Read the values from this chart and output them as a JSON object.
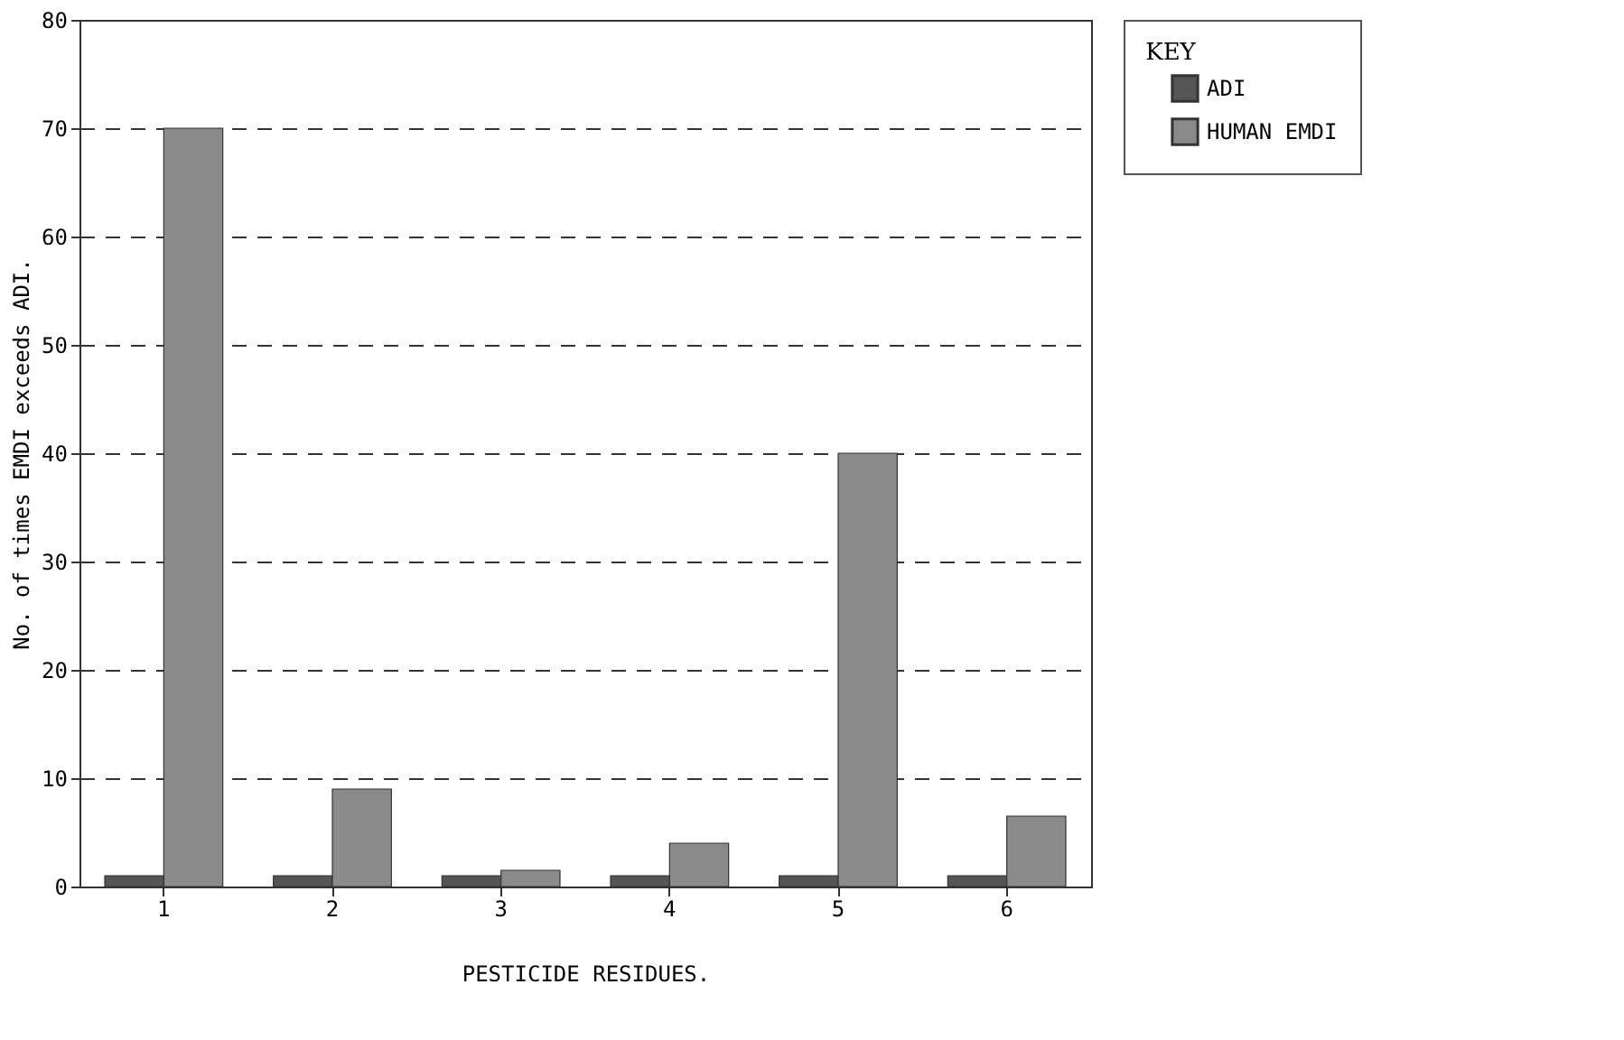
{
  "chart_data": {
    "type": "bar",
    "xlabel": "PESTICIDE RESIDUES.",
    "ylabel": "No. of times EMDI exceeds ADI.",
    "legend_title": "KEY",
    "categories": [
      "1",
      "2",
      "3",
      "4",
      "5",
      "6"
    ],
    "series": [
      {
        "name": "ADI",
        "color": "#555555",
        "values": [
          1,
          1,
          1,
          1,
          1,
          1
        ]
      },
      {
        "name": "HUMAN EMDI",
        "color": "#8a8a8a",
        "values": [
          70,
          9,
          1.5,
          4,
          40,
          6.5
        ]
      }
    ],
    "ylim": [
      0,
      80
    ],
    "yticks": [
      0,
      10,
      20,
      30,
      40,
      50,
      60,
      70,
      80
    ],
    "grid": "y",
    "line_style": "dashed",
    "legend": "right"
  }
}
